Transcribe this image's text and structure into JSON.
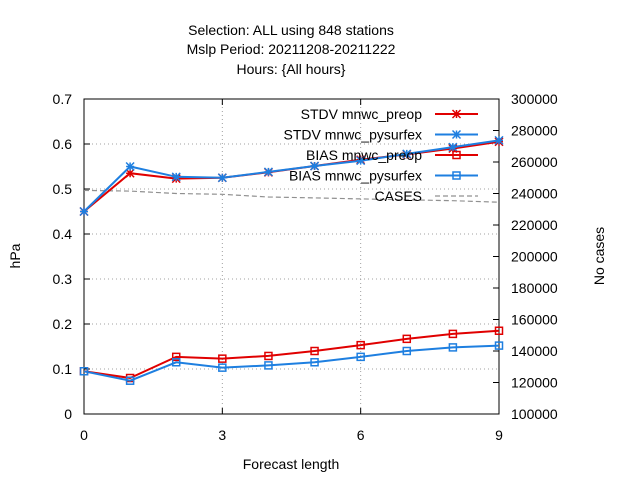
{
  "chart_data": {
    "type": "line",
    "title_lines": [
      "Selection: ALL using   848 stations",
      "Mslp   Period: 20211208-20211222",
      "Hours: {All hours}"
    ],
    "xlabel": "Forecast length",
    "ylabel": "hPa",
    "y2label": "No cases",
    "x": [
      0,
      1,
      2,
      3,
      4,
      5,
      6,
      7,
      8,
      9
    ],
    "xticks": [
      0,
      3,
      6,
      9
    ],
    "xlim": [
      0,
      9
    ],
    "ylim": [
      0,
      0.7
    ],
    "yticks": [
      0,
      0.1,
      0.2,
      0.3,
      0.4,
      0.5,
      0.6,
      0.7
    ],
    "y2lim": [
      100000,
      300000
    ],
    "y2ticks": [
      100000,
      120000,
      140000,
      160000,
      180000,
      200000,
      220000,
      240000,
      260000,
      280000,
      300000
    ],
    "grid": true,
    "legend_position": "top-right",
    "series": [
      {
        "name": "STDV mnwc_preop",
        "axis": "y",
        "color": "#e00000",
        "marker": "star",
        "values": [
          0.45,
          0.535,
          0.523,
          0.525,
          0.537,
          0.551,
          0.565,
          0.577,
          0.59,
          0.605
        ]
      },
      {
        "name": "STDV mnwc_pysurfex",
        "axis": "y",
        "color": "#1e7fe0",
        "marker": "star",
        "values": [
          0.45,
          0.55,
          0.527,
          0.525,
          0.538,
          0.551,
          0.563,
          0.578,
          0.593,
          0.608
        ]
      },
      {
        "name": "BIAS mnwc_preop",
        "axis": "y",
        "color": "#e00000",
        "marker": "square",
        "values": [
          0.095,
          0.08,
          0.127,
          0.123,
          0.129,
          0.14,
          0.153,
          0.167,
          0.178,
          0.185
        ]
      },
      {
        "name": "BIAS mnwc_pysurfex",
        "axis": "y",
        "color": "#1e7fe0",
        "marker": "square",
        "values": [
          0.095,
          0.074,
          0.115,
          0.103,
          0.108,
          0.115,
          0.127,
          0.14,
          0.148,
          0.152
        ]
      },
      {
        "name": "CASES",
        "axis": "y2",
        "color": "#909090",
        "marker": "none",
        "dashed": true,
        "values": [
          242000,
          241500,
          240000,
          239500,
          237800,
          237200,
          236600,
          236000,
          235400,
          234500
        ]
      }
    ]
  }
}
